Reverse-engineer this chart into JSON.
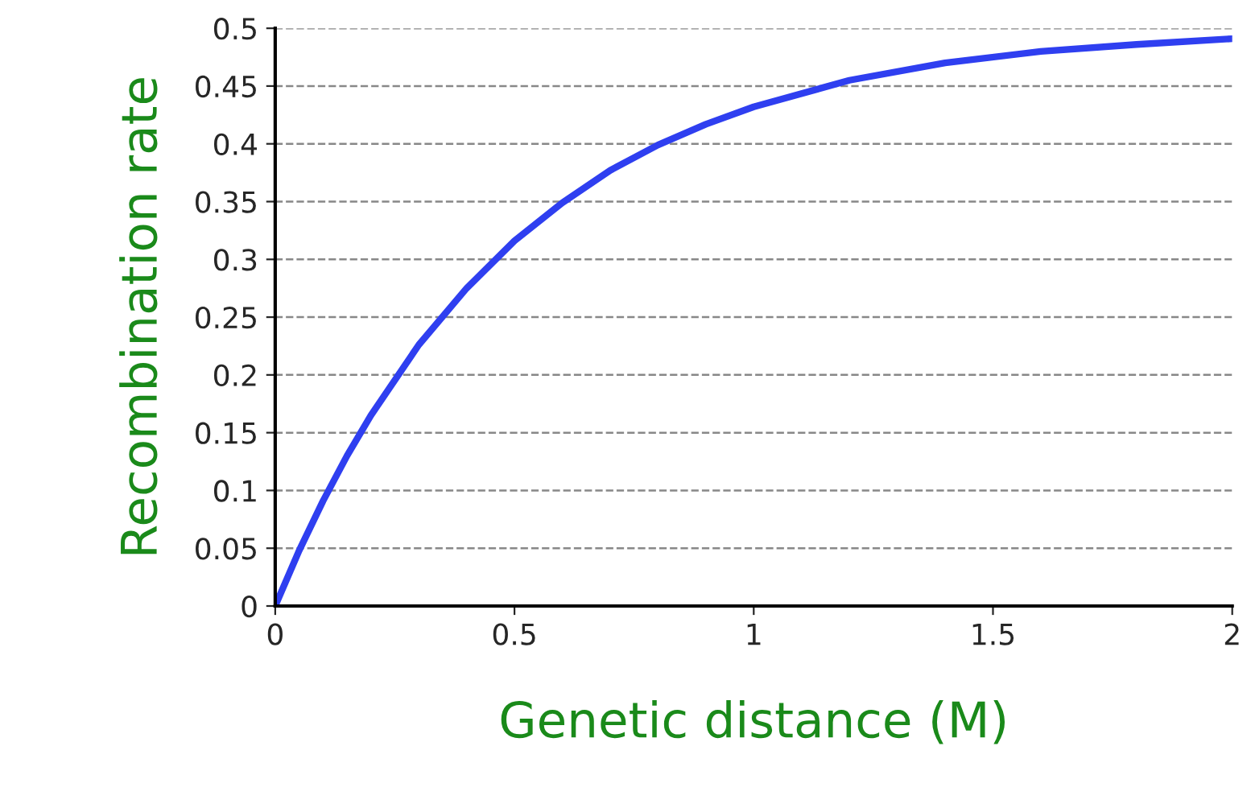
{
  "chart_data": {
    "type": "line",
    "xlabel": "Genetic distance (M)",
    "ylabel": "Recombination rate",
    "x": [
      0,
      0.05,
      0.1,
      0.15,
      0.2,
      0.3,
      0.4,
      0.5,
      0.6,
      0.7,
      0.8,
      0.9,
      1,
      1.2,
      1.4,
      1.6,
      1.8,
      2
    ],
    "series": [
      {
        "color": "#2f3ff0",
        "values": [
          0,
          0.048,
          0.091,
          0.13,
          0.165,
          0.226,
          0.275,
          0.316,
          0.349,
          0.377,
          0.399,
          0.417,
          0.432,
          0.455,
          0.47,
          0.48,
          0.486,
          0.491
        ]
      }
    ],
    "xlim": [
      0,
      2
    ],
    "ylim": [
      0,
      0.5
    ],
    "xticks": [
      0,
      0.5,
      1,
      1.5,
      2
    ],
    "yticks": [
      0,
      0.05,
      0.1,
      0.15,
      0.2,
      0.25,
      0.3,
      0.35,
      0.4,
      0.45,
      0.5
    ],
    "grid": "y",
    "line_style": "solid",
    "marker": "none"
  }
}
